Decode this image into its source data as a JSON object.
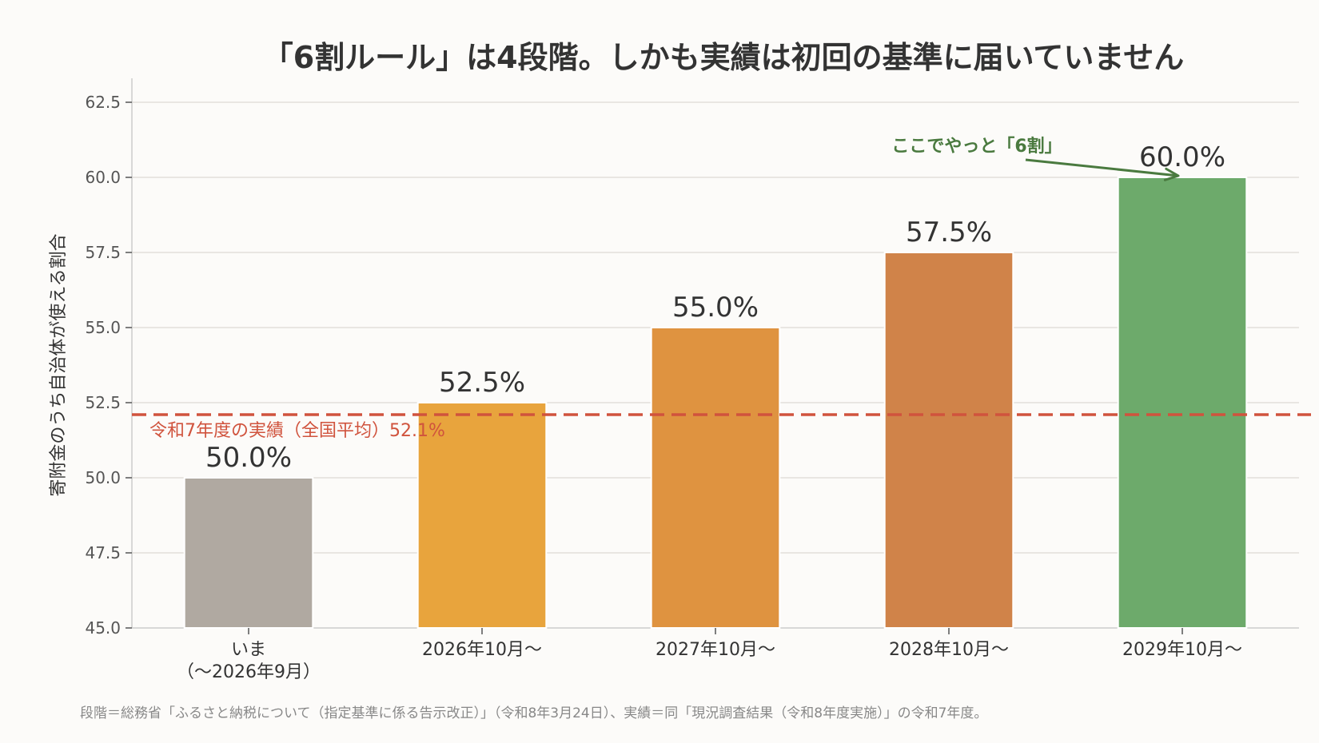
{
  "chart_data": {
    "type": "bar",
    "title": "「6割ルール」は4段階。しかも実績は初回の基準に届いていません",
    "xlabel": "",
    "ylabel": "寄附金のうち自治体が使える割合",
    "ylim": [
      45.0,
      62.5
    ],
    "yticks": [
      "45.0",
      "47.5",
      "50.0",
      "52.5",
      "55.0",
      "57.5",
      "60.0",
      "62.5"
    ],
    "grid": "horizontal",
    "categories": [
      [
        "いま",
        "（〜2026年9月）"
      ],
      [
        "2026年10月〜"
      ],
      [
        "2027年10月〜"
      ],
      [
        "2028年10月〜"
      ],
      [
        "2029年10月〜"
      ]
    ],
    "values": [
      50.0,
      52.5,
      55.0,
      57.5,
      60.0
    ],
    "value_labels": [
      "50.0%",
      "52.5%",
      "55.0%",
      "57.5%",
      "60.0%"
    ],
    "bar_colors": [
      "#b0a9a1",
      "#e8a43d",
      "#df9340",
      "#d08349",
      "#6daa6b"
    ],
    "reference_line": {
      "value": 52.1,
      "label": "令和7年度の実績（全国平均）52.1%",
      "color": "#d0533d",
      "style": "dashed"
    },
    "annotation": {
      "text": "ここでやっと「6割」",
      "target_index": 4,
      "color": "#4a7a3f"
    },
    "source": "段階＝総務省「ふるさと納税について（指定基準に係る告示改正）」（令和8年3月24日）、実績＝同「現況調査結果（令和8年度実施）」の令和7年度。"
  }
}
